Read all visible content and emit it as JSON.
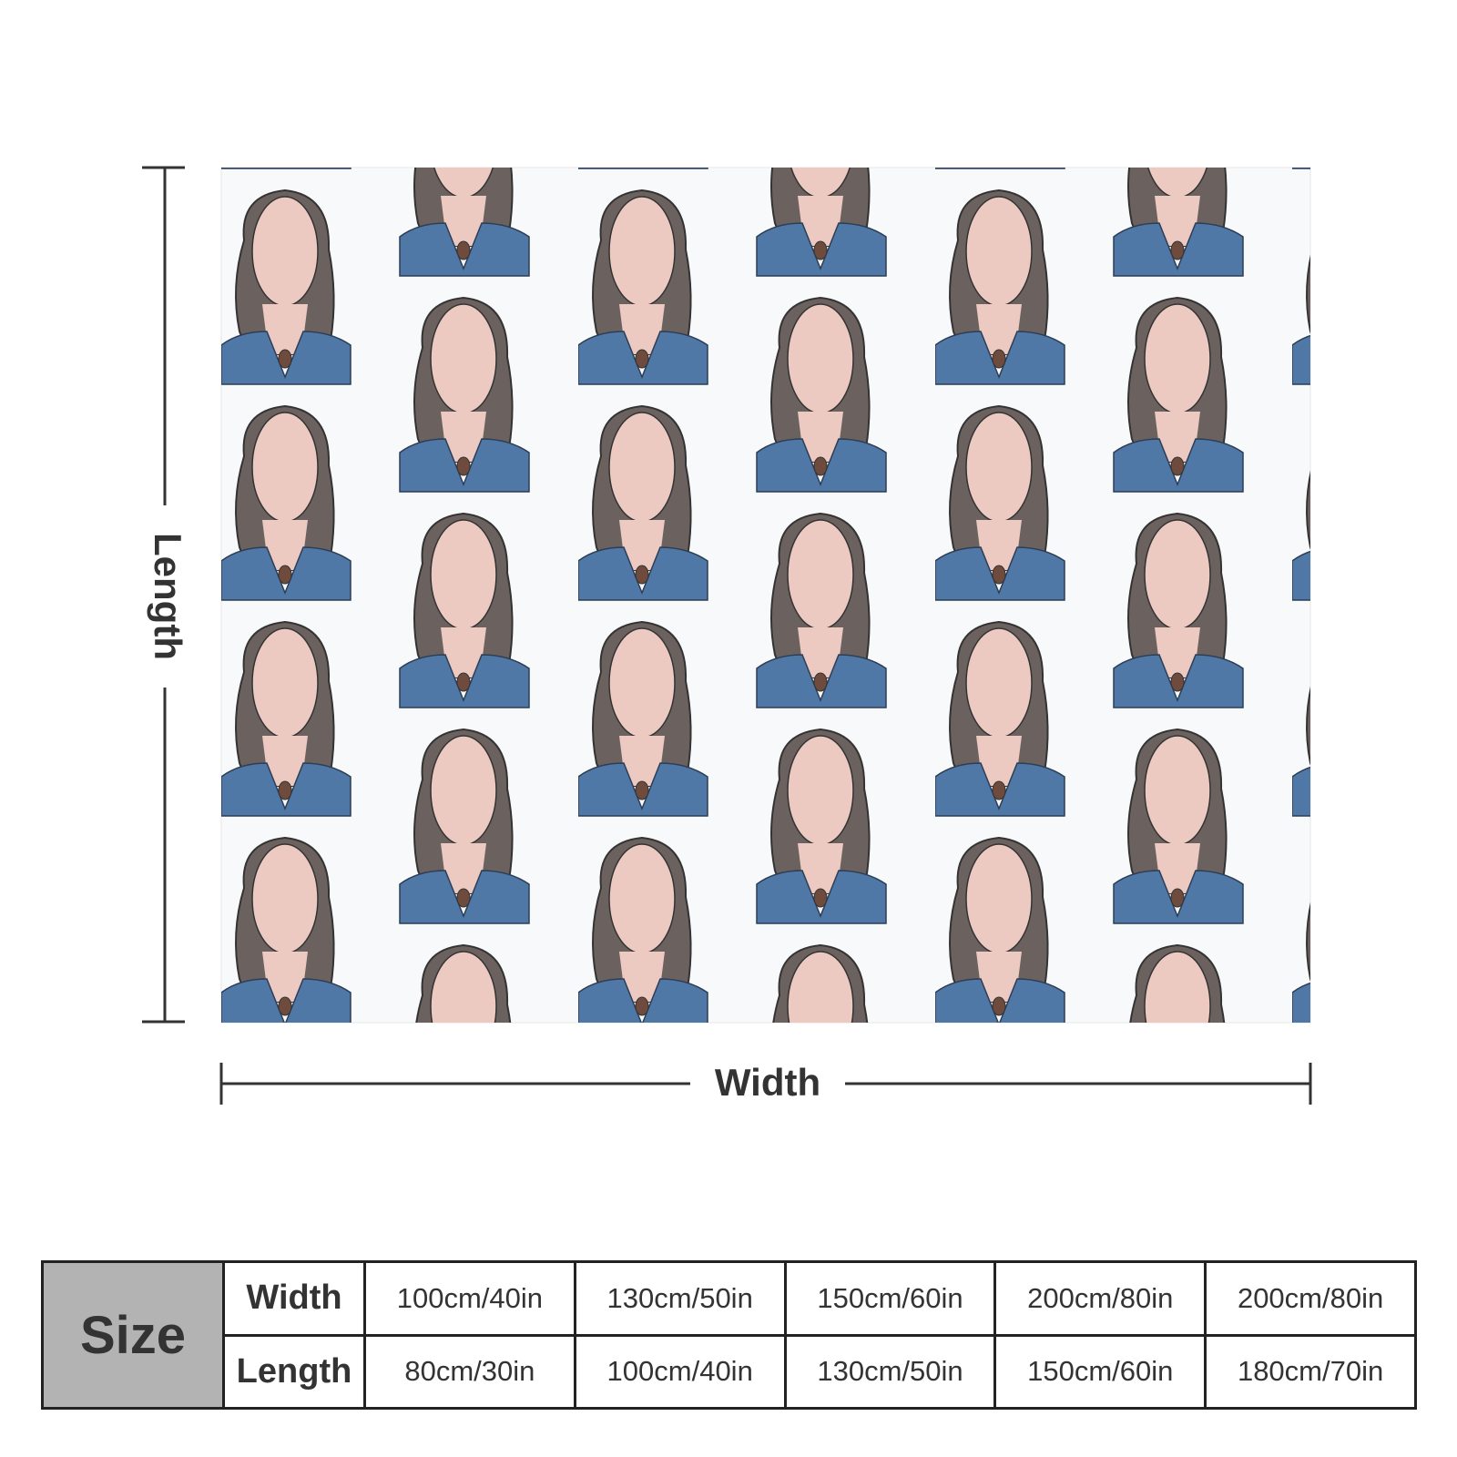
{
  "dimensions": {
    "length_label": "Length",
    "width_label": "Width"
  },
  "table": {
    "header": "Size",
    "rows": [
      {
        "label": "Width",
        "cells": [
          "100cm/40in",
          "130cm/50in",
          "150cm/60in",
          "200cm/80in",
          "200cm/80in"
        ]
      },
      {
        "label": "Length",
        "cells": [
          "80cm/30in",
          "100cm/40in",
          "130cm/50in",
          "150cm/60in",
          "180cm/70in"
        ]
      }
    ]
  }
}
